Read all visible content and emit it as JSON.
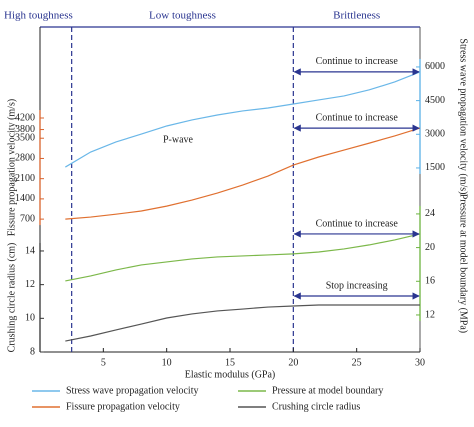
{
  "chart_data": {
    "type": "line",
    "x_label": "Elastic modulus (GPa)",
    "xlim": [
      0,
      30
    ],
    "xticks": [
      5,
      10,
      15,
      20,
      25,
      30
    ],
    "x": [
      2,
      4,
      6,
      8,
      10,
      12,
      14,
      16,
      18,
      20,
      22,
      24,
      26,
      28,
      30
    ],
    "boundaries": [
      2.5,
      20
    ],
    "region_labels": [
      "High toughness",
      "Low toughness",
      "Brittleness"
    ],
    "y_axes": [
      {
        "label": "Stress wave propagation velocity (m/s)",
        "side": "right",
        "color": "#5bb1e6",
        "ylim": [
          -6700,
          7780
        ],
        "yticks": [
          1500,
          3000,
          4500,
          6000
        ]
      },
      {
        "label": "Fissure propagation velocity (m/s)",
        "side": "left",
        "color": "#d9622b",
        "ylim": [
          -3900,
          7350
        ],
        "yticks": [
          700,
          1400,
          2100,
          2800,
          3500,
          3800,
          4200
        ]
      },
      {
        "label": "Pressure at model boundary (MPa)",
        "side": "right",
        "color": "#6db33f",
        "ylim": [
          7.6,
          46.2
        ],
        "yticks": [
          12,
          16,
          20,
          24
        ]
      },
      {
        "label": "Crushing circle radius (cm)",
        "side": "left",
        "color": "#333333",
        "ylim": [
          8,
          27.3
        ],
        "yticks": [
          8,
          10,
          12,
          14
        ]
      }
    ],
    "series": [
      {
        "name": "Stress wave propagation velocity",
        "color": "#6ab7e8",
        "values": [
          1540,
          2210,
          2660,
          3010,
          3370,
          3640,
          3860,
          4040,
          4170,
          4350,
          4530,
          4710,
          4980,
          5330,
          5780
        ],
        "annotation": "P-wave",
        "arrow_label": "Continue to increase"
      },
      {
        "name": "Fissure propagation velocity",
        "color": "#e07030",
        "values": [
          700,
          770,
          870,
          980,
          1150,
          1360,
          1600,
          1880,
          2190,
          2570,
          2850,
          3090,
          3330,
          3580,
          3850
        ],
        "arrow_label": "Continue to increase"
      },
      {
        "name": "Pressure at model boundary",
        "color": "#7cb84a",
        "values": [
          16.04,
          16.63,
          17.35,
          17.94,
          18.3,
          18.65,
          18.89,
          19.01,
          19.13,
          19.25,
          19.48,
          19.84,
          20.32,
          20.91,
          21.62
        ],
        "arrow_label": "Continue to increase"
      },
      {
        "name": "Crushing circle radius",
        "color": "#555555",
        "values": [
          8.65,
          8.95,
          9.31,
          9.66,
          10.02,
          10.26,
          10.44,
          10.55,
          10.67,
          10.73,
          10.79,
          10.79,
          10.79,
          10.79,
          10.79
        ],
        "arrow_label": "Stop increasing"
      }
    ]
  }
}
